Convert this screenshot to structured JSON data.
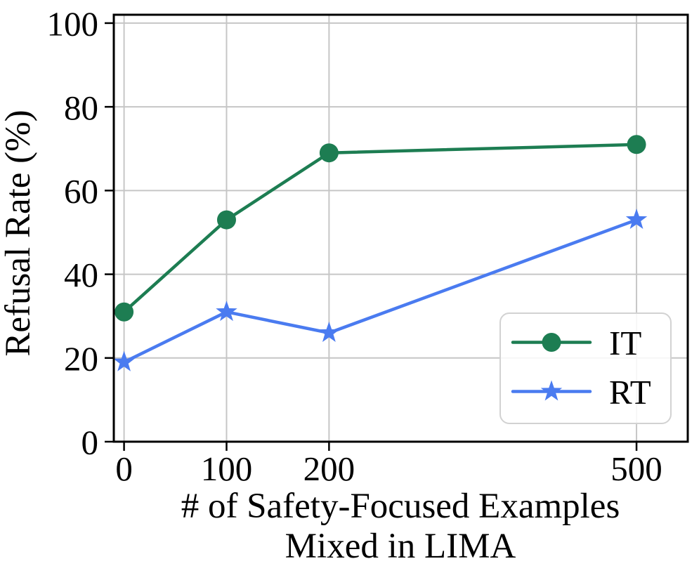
{
  "chart_data": {
    "type": "line",
    "title": "",
    "x": [
      0,
      100,
      200,
      500
    ],
    "xtick_labels": [
      "0",
      "100",
      "200",
      "500"
    ],
    "ytick_values": [
      0,
      20,
      40,
      60,
      80,
      100
    ],
    "xlim": [
      -10,
      550
    ],
    "ylim": [
      0,
      102
    ],
    "grid": true,
    "legend_position": "lower right",
    "xlabel_lines": [
      "# of Safety-Focused Examples",
      "Mixed in LIMA"
    ],
    "ylabel": "Refusal Rate (%)",
    "series": [
      {
        "name": "IT",
        "marker": "circle",
        "color": "#1d7d52",
        "values": [
          31,
          53,
          69,
          71
        ]
      },
      {
        "name": "RT",
        "marker": "star",
        "color": "#4a7bf0",
        "values": [
          19,
          31,
          26,
          53
        ]
      }
    ],
    "style_colors": {
      "grid": "#c6c6c6",
      "spine": "#000000",
      "tick": "#000000",
      "legend_border": "#d2d2d2",
      "legend_background": "rgba(255,255,255,0.85)",
      "text": "#000000"
    }
  }
}
